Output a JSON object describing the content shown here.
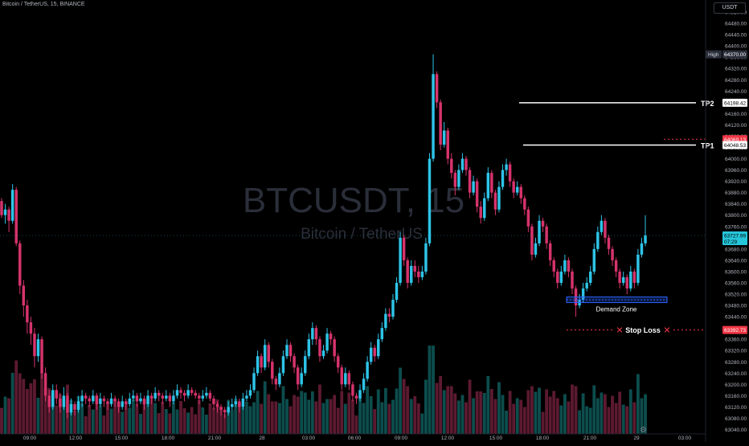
{
  "header": {
    "symbol_line": "Bitcoin / TetherUS, 15, BINANCE",
    "currency_button": "USDT"
  },
  "watermark": {
    "ticker": "BTCUSDT, 15",
    "name": "Bitcoin / TetherUS"
  },
  "colors": {
    "up": "#2ec4e8",
    "down": "#d6336c",
    "background": "#000000",
    "axis_text": "#b2b5be",
    "tp_line": "#ffffff",
    "stop_loss": "#f23645",
    "demand_zone": "#2962ff",
    "current_price_bg": "#26c6da"
  },
  "axis": {
    "price_ticks": [
      "64520.00",
      "64480.00",
      "64440.00",
      "64400.00",
      "64360.00",
      "64320.00",
      "64280.00",
      "64240.00",
      "64200.00",
      "64160.00",
      "64120.00",
      "64080.00",
      "64040.00",
      "64000.00",
      "63960.00",
      "63920.00",
      "63880.00",
      "63840.00",
      "63800.00",
      "63760.00",
      "63720.00",
      "63680.00",
      "63640.00",
      "63600.00",
      "63560.00",
      "63520.00",
      "63480.00",
      "63440.00",
      "63400.00",
      "63360.00",
      "63320.00",
      "63280.00",
      "63240.00",
      "63200.00",
      "63160.00",
      "63120.00",
      "63080.00",
      "63040.00"
    ],
    "time_ticks": [
      "09:00",
      "12:00",
      "15:00",
      "18:00",
      "21:00",
      "28",
      "03:00",
      "06:00",
      "09:00",
      "12:00",
      "15:00",
      "18:00",
      "21:00",
      "29",
      "03:00"
    ]
  },
  "price_tags": {
    "high_label": "High",
    "high_value": "64370.00",
    "tp2_value": "64198.42",
    "red_value": "64069.13",
    "tp1_value": "64048.53",
    "current_value": "63727.99",
    "current_timer": "07:29",
    "stop_value": "63392.73"
  },
  "annotations": {
    "tp1": "TP1",
    "tp2": "TP2",
    "stop_loss": "Stop Loss",
    "demand_zone": "Demand Zone"
  },
  "chart_data": {
    "type": "candlestick",
    "symbol": "BTCUSDT",
    "interval": "15",
    "exchange": "BINANCE",
    "ylim": [
      63030,
      64540
    ],
    "levels": {
      "tp2": 64198.42,
      "tp1": 64048.53,
      "stop_loss": 63392.73,
      "high": 64370.0,
      "current": 63727.99,
      "demand_zone": [
        63490,
        63510
      ]
    },
    "candles": [
      [
        63850,
        63800,
        63860,
        63790
      ],
      [
        63800,
        63820,
        63840,
        63770
      ],
      [
        63820,
        63780,
        63830,
        63740
      ],
      [
        63780,
        63890,
        63910,
        63770
      ],
      [
        63890,
        63700,
        63900,
        63690
      ],
      [
        63700,
        63550,
        63710,
        63520
      ],
      [
        63550,
        63480,
        63570,
        63440
      ],
      [
        63480,
        63420,
        63500,
        63380
      ],
      [
        63420,
        63380,
        63440,
        63340
      ],
      [
        63380,
        63300,
        63400,
        63260
      ],
      [
        63300,
        63360,
        63380,
        63280
      ],
      [
        63360,
        63240,
        63370,
        63220
      ],
      [
        63240,
        63160,
        63260,
        63140
      ],
      [
        63160,
        63120,
        63180,
        63100
      ],
      [
        63120,
        63180,
        63200,
        63110
      ],
      [
        63180,
        63150,
        63200,
        63130
      ],
      [
        63150,
        63120,
        63170,
        63100
      ],
      [
        63120,
        63160,
        63190,
        63110
      ],
      [
        63160,
        63100,
        63170,
        63080
      ],
      [
        63100,
        63130,
        63150,
        63090
      ],
      [
        63130,
        63110,
        63140,
        63090
      ],
      [
        63110,
        63140,
        63160,
        63100
      ],
      [
        63140,
        63160,
        63180,
        63120
      ],
      [
        63160,
        63150,
        63170,
        63130
      ],
      [
        63150,
        63140,
        63160,
        63120
      ],
      [
        63140,
        63160,
        63180,
        63130
      ],
      [
        63160,
        63130,
        63170,
        63110
      ],
      [
        63130,
        63150,
        63170,
        63120
      ],
      [
        63150,
        63140,
        63160,
        63120
      ],
      [
        63140,
        63130,
        63150,
        63110
      ],
      [
        63130,
        63150,
        63170,
        63120
      ],
      [
        63150,
        63140,
        63160,
        63120
      ],
      [
        63140,
        63120,
        63150,
        63100
      ],
      [
        63120,
        63140,
        63160,
        63110
      ],
      [
        63140,
        63130,
        63150,
        63110
      ],
      [
        63130,
        63150,
        63170,
        63120
      ],
      [
        63150,
        63160,
        63180,
        63140
      ],
      [
        63160,
        63140,
        63170,
        63120
      ],
      [
        63140,
        63150,
        63170,
        63130
      ],
      [
        63150,
        63130,
        63160,
        63110
      ],
      [
        63130,
        63160,
        63180,
        63120
      ],
      [
        63160,
        63150,
        63170,
        63130
      ],
      [
        63150,
        63170,
        63190,
        63140
      ],
      [
        63170,
        63160,
        63180,
        63140
      ],
      [
        63160,
        63150,
        63170,
        63130
      ],
      [
        63150,
        63160,
        63180,
        63140
      ],
      [
        63160,
        63140,
        63170,
        63120
      ],
      [
        63140,
        63160,
        63180,
        63130
      ],
      [
        63160,
        63180,
        63200,
        63150
      ],
      [
        63180,
        63170,
        63190,
        63150
      ],
      [
        63170,
        63160,
        63180,
        63140
      ],
      [
        63160,
        63180,
        63200,
        63150
      ],
      [
        63180,
        63170,
        63190,
        63160
      ],
      [
        63170,
        63160,
        63180,
        63150
      ],
      [
        63160,
        63150,
        63170,
        63130
      ],
      [
        63150,
        63160,
        63180,
        63140
      ],
      [
        63160,
        63170,
        63190,
        63150
      ],
      [
        63170,
        63150,
        63180,
        63140
      ],
      [
        63150,
        63130,
        63160,
        63110
      ],
      [
        63130,
        63120,
        63140,
        63100
      ],
      [
        63120,
        63110,
        63130,
        63090
      ],
      [
        63110,
        63100,
        63120,
        63080
      ],
      [
        63100,
        63120,
        63140,
        63090
      ],
      [
        63120,
        63130,
        63150,
        63110
      ],
      [
        63130,
        63140,
        63160,
        63120
      ],
      [
        63140,
        63120,
        63150,
        63100
      ],
      [
        63120,
        63150,
        63170,
        63110
      ],
      [
        63150,
        63160,
        63180,
        63140
      ],
      [
        63160,
        63180,
        63200,
        63150
      ],
      [
        63180,
        63240,
        63260,
        63170
      ],
      [
        63240,
        63300,
        63320,
        63230
      ],
      [
        63300,
        63260,
        63310,
        63240
      ],
      [
        63260,
        63340,
        63360,
        63250
      ],
      [
        63340,
        63280,
        63350,
        63260
      ],
      [
        63280,
        63220,
        63290,
        63200
      ],
      [
        63220,
        63200,
        63230,
        63180
      ],
      [
        63200,
        63240,
        63260,
        63190
      ],
      [
        63240,
        63300,
        63320,
        63230
      ],
      [
        63300,
        63340,
        63360,
        63290
      ],
      [
        63340,
        63300,
        63350,
        63280
      ],
      [
        63300,
        63260,
        63310,
        63240
      ],
      [
        63260,
        63200,
        63270,
        63180
      ],
      [
        63200,
        63240,
        63260,
        63190
      ],
      [
        63240,
        63300,
        63320,
        63230
      ],
      [
        63300,
        63360,
        63380,
        63290
      ],
      [
        63360,
        63400,
        63420,
        63340
      ],
      [
        63400,
        63360,
        63410,
        63340
      ],
      [
        63360,
        63300,
        63370,
        63280
      ],
      [
        63300,
        63320,
        63340,
        63290
      ],
      [
        63320,
        63380,
        63400,
        63310
      ],
      [
        63380,
        63360,
        63390,
        63340
      ],
      [
        63360,
        63300,
        63370,
        63280
      ],
      [
        63300,
        63260,
        63310,
        63240
      ],
      [
        63260,
        63200,
        63270,
        63180
      ],
      [
        63200,
        63240,
        63260,
        63190
      ],
      [
        63240,
        63200,
        63250,
        63180
      ],
      [
        63200,
        63160,
        63210,
        63140
      ],
      [
        63160,
        63150,
        63170,
        63130
      ],
      [
        63150,
        63180,
        63200,
        63140
      ],
      [
        63180,
        63220,
        63240,
        63170
      ],
      [
        63220,
        63280,
        63300,
        63210
      ],
      [
        63280,
        63330,
        63350,
        63270
      ],
      [
        63330,
        63300,
        63340,
        63280
      ],
      [
        63300,
        63360,
        63380,
        63290
      ],
      [
        63360,
        63400,
        63420,
        63350
      ],
      [
        63400,
        63450,
        63470,
        63390
      ],
      [
        63450,
        63440,
        63470,
        63420
      ],
      [
        63440,
        63500,
        63520,
        63430
      ],
      [
        63500,
        63560,
        63580,
        63490
      ],
      [
        63560,
        63720,
        63740,
        63550
      ],
      [
        63720,
        63640,
        63730,
        63620
      ],
      [
        63640,
        63560,
        63650,
        63540
      ],
      [
        63560,
        63620,
        63640,
        63550
      ],
      [
        63620,
        63600,
        63640,
        63580
      ],
      [
        63600,
        63580,
        63620,
        63560
      ],
      [
        63580,
        63600,
        63620,
        63570
      ],
      [
        63600,
        63700,
        63720,
        63590
      ],
      [
        63700,
        64000,
        64020,
        63690
      ],
      [
        64000,
        64300,
        64370,
        63990
      ],
      [
        64300,
        64200,
        64310,
        64180
      ],
      [
        64200,
        64050,
        64210,
        64030
      ],
      [
        64050,
        64100,
        64130,
        64040
      ],
      [
        64100,
        64000,
        64110,
        63980
      ],
      [
        64000,
        63950,
        64020,
        63930
      ],
      [
        63950,
        63900,
        63960,
        63870
      ],
      [
        63900,
        63960,
        63980,
        63890
      ],
      [
        63960,
        64000,
        64020,
        63950
      ],
      [
        64000,
        63960,
        64010,
        63940
      ],
      [
        63960,
        63880,
        63970,
        63860
      ],
      [
        63880,
        63920,
        63940,
        63870
      ],
      [
        63920,
        63830,
        63930,
        63810
      ],
      [
        63830,
        63790,
        63850,
        63770
      ],
      [
        63790,
        63860,
        63880,
        63780
      ],
      [
        63860,
        63950,
        63970,
        63850
      ],
      [
        63950,
        63880,
        63960,
        63860
      ],
      [
        63880,
        63820,
        63890,
        63800
      ],
      [
        63820,
        63900,
        63920,
        63810
      ],
      [
        63900,
        63960,
        63980,
        63890
      ],
      [
        63960,
        63980,
        64000,
        63940
      ],
      [
        63980,
        63920,
        63990,
        63900
      ],
      [
        63920,
        63880,
        63930,
        63860
      ],
      [
        63880,
        63900,
        63920,
        63870
      ],
      [
        63900,
        63860,
        63910,
        63840
      ],
      [
        63860,
        63820,
        63870,
        63800
      ],
      [
        63820,
        63760,
        63830,
        63740
      ],
      [
        63760,
        63660,
        63770,
        63640
      ],
      [
        63660,
        63700,
        63720,
        63650
      ],
      [
        63700,
        63780,
        63800,
        63690
      ],
      [
        63780,
        63760,
        63790,
        63740
      ],
      [
        63760,
        63700,
        63770,
        63680
      ],
      [
        63700,
        63640,
        63710,
        63620
      ],
      [
        63640,
        63600,
        63650,
        63580
      ],
      [
        63600,
        63560,
        63610,
        63540
      ],
      [
        63560,
        63600,
        63620,
        63550
      ],
      [
        63600,
        63640,
        63660,
        63590
      ],
      [
        63640,
        63600,
        63650,
        63580
      ],
      [
        63600,
        63540,
        63610,
        63520
      ],
      [
        63540,
        63480,
        63550,
        63440
      ],
      [
        63480,
        63500,
        63520,
        63470
      ],
      [
        63500,
        63540,
        63560,
        63490
      ],
      [
        63540,
        63560,
        63580,
        63530
      ],
      [
        63560,
        63600,
        63620,
        63550
      ],
      [
        63600,
        63680,
        63700,
        63590
      ],
      [
        63680,
        63740,
        63760,
        63670
      ],
      [
        63740,
        63780,
        63800,
        63730
      ],
      [
        63780,
        63720,
        63790,
        63700
      ],
      [
        63720,
        63680,
        63730,
        63660
      ],
      [
        63680,
        63640,
        63690,
        63620
      ],
      [
        63640,
        63600,
        63650,
        63580
      ],
      [
        63600,
        63560,
        63610,
        63540
      ],
      [
        63560,
        63580,
        63600,
        63550
      ],
      [
        63580,
        63540,
        63590,
        63520
      ],
      [
        63540,
        63600,
        63620,
        63530
      ],
      [
        63600,
        63560,
        63610,
        63540
      ],
      [
        63560,
        63660,
        63680,
        63550
      ],
      [
        63660,
        63700,
        63720,
        63650
      ],
      [
        63700,
        63728,
        63800,
        63690
      ]
    ]
  }
}
